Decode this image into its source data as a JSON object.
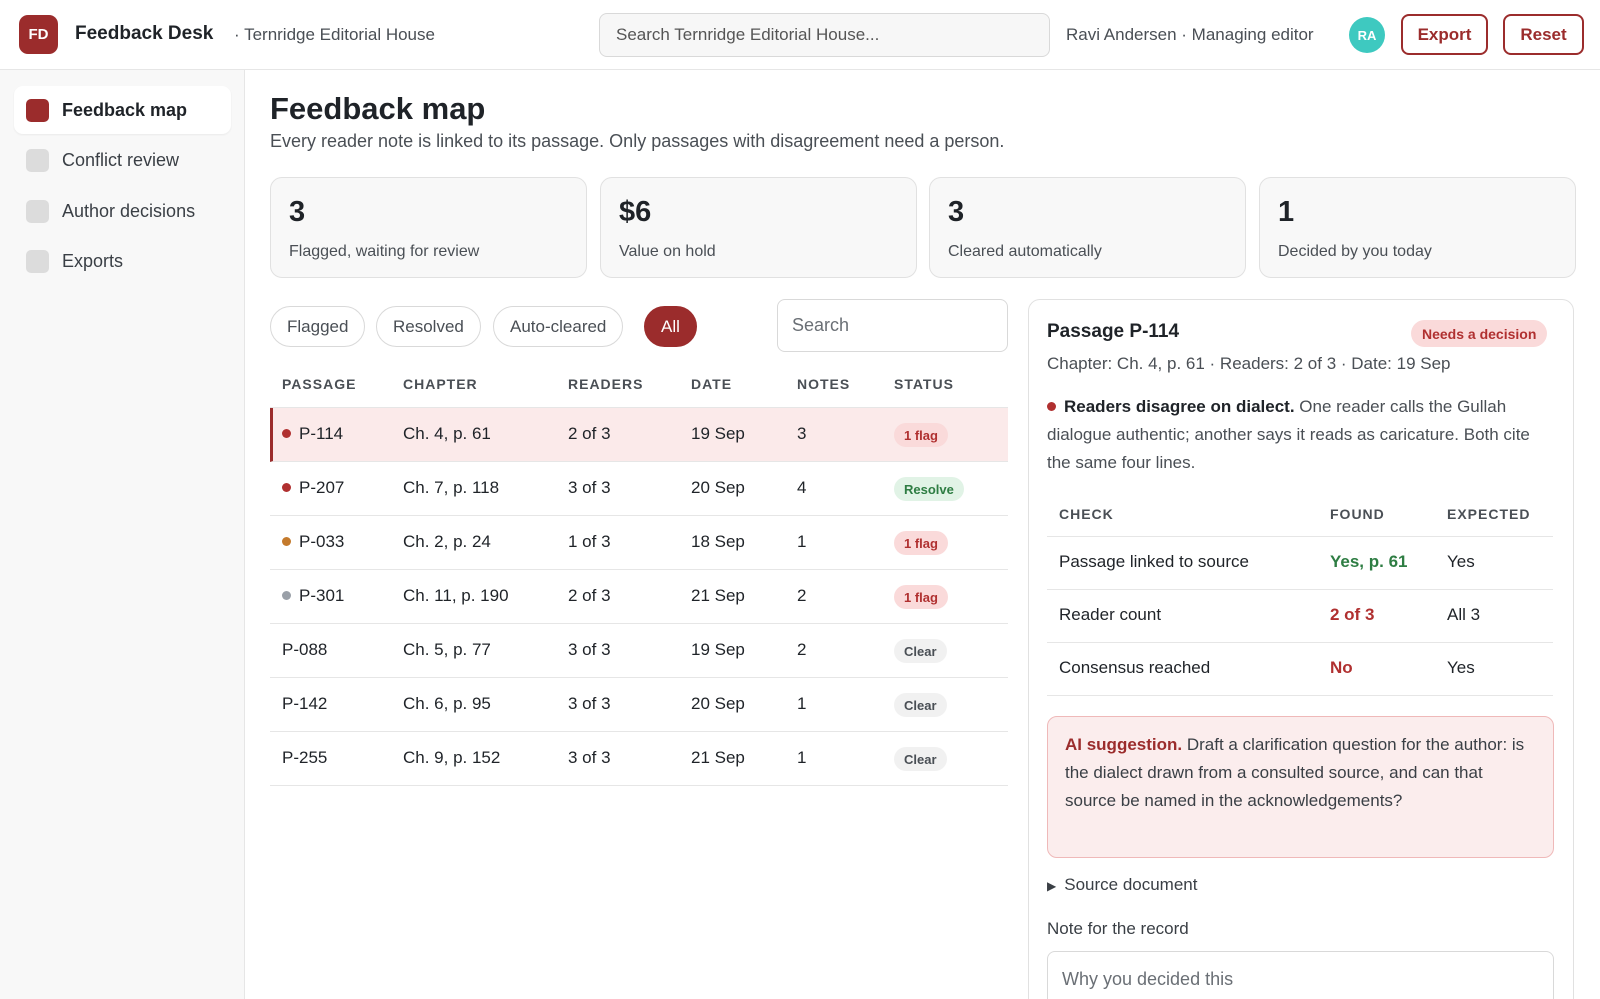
{
  "header": {
    "logo_text": "FD",
    "app_name": "Feedback Desk",
    "org_name": "· Ternridge Editorial House",
    "search_placeholder": "Search Ternridge Editorial House...",
    "user_label": "Ravi Andersen · Managing editor",
    "avatar_initials": "RA",
    "export_label": "Export",
    "reset_label": "Reset"
  },
  "sidebar": {
    "items": [
      {
        "label": "Feedback map",
        "active": true
      },
      {
        "label": "Conflict review",
        "active": false
      },
      {
        "label": "Author decisions",
        "active": false
      },
      {
        "label": "Exports",
        "active": false
      }
    ]
  },
  "main": {
    "title": "Feedback map",
    "subtitle": "Every reader note is linked to its passage. Only passages with disagreement need a person."
  },
  "stats": [
    {
      "value": "3",
      "label": "Flagged, waiting for review"
    },
    {
      "value": "$6",
      "label": "Value on hold"
    },
    {
      "value": "3",
      "label": "Cleared automatically"
    },
    {
      "value": "1",
      "label": "Decided by you today"
    }
  ],
  "filters": {
    "chips": [
      "Flagged",
      "Resolved",
      "Auto-cleared",
      "All"
    ],
    "active": "All",
    "search_placeholder": "Search"
  },
  "table": {
    "columns": [
      "PASSAGE",
      "CHAPTER",
      "READERS",
      "DATE",
      "NOTES",
      "STATUS"
    ],
    "rows": [
      {
        "passage": "P-114",
        "chapter": "Ch. 4, p. 61",
        "readers": "2 of 3",
        "date": "19 Sep",
        "notes": "3",
        "status": "1 flag",
        "status_type": "flag",
        "dot": "#b03030",
        "selected": true
      },
      {
        "passage": "P-207",
        "chapter": "Ch. 7, p. 118",
        "readers": "3 of 3",
        "date": "20 Sep",
        "notes": "4",
        "status": "Resolve",
        "status_type": "resolve",
        "dot": "#b03030",
        "selected": false
      },
      {
        "passage": "P-033",
        "chapter": "Ch. 2, p. 24",
        "readers": "1 of 3",
        "date": "18 Sep",
        "notes": "1",
        "status": "1 flag",
        "status_type": "flag",
        "dot": "#c47a2c",
        "selected": false
      },
      {
        "passage": "P-301",
        "chapter": "Ch. 11, p. 190",
        "readers": "2 of 3",
        "date": "21 Sep",
        "notes": "2",
        "status": "1 flag",
        "status_type": "flag",
        "dot": "#9aa0a8",
        "selected": false
      },
      {
        "passage": "P-088",
        "chapter": "Ch. 5, p. 77",
        "readers": "3 of 3",
        "date": "19 Sep",
        "notes": "2",
        "status": "Clear",
        "status_type": "clear",
        "dot": "",
        "selected": false
      },
      {
        "passage": "P-142",
        "chapter": "Ch. 6, p. 95",
        "readers": "3 of 3",
        "date": "20 Sep",
        "notes": "1",
        "status": "Clear",
        "status_type": "clear",
        "dot": "",
        "selected": false
      },
      {
        "passage": "P-255",
        "chapter": "Ch. 9, p. 152",
        "readers": "3 of 3",
        "date": "21 Sep",
        "notes": "1",
        "status": "Clear",
        "status_type": "clear",
        "dot": "",
        "selected": false
      }
    ]
  },
  "detail": {
    "title": "Passage P-114",
    "badge": "Needs a decision",
    "meta": "Chapter: Ch. 4, p. 61 · Readers: 2 of 3 · Date: 19 Sep",
    "desc_strong": "Readers disagree on dialect.",
    "desc_text": " One reader calls the Gullah dialogue authentic; another says it reads as caricature. Both cite the same four lines.",
    "check_columns": [
      "CHECK",
      "FOUND",
      "EXPECTED"
    ],
    "checks": [
      {
        "check": "Passage linked to source",
        "found": "Yes, p. 61",
        "found_ok": true,
        "expected": "Yes"
      },
      {
        "check": "Reader count",
        "found": "2 of 3",
        "found_ok": false,
        "expected": "All 3"
      },
      {
        "check": "Consensus reached",
        "found": "No",
        "found_ok": false,
        "expected": "Yes"
      }
    ],
    "ai_strong": "AI suggestion.",
    "ai_text": " Draft a clarification question for the author: is the dialect drawn from a consulted source, and can that source be named in the acknowledgements?",
    "source_toggle": "Source document",
    "note_label": "Note for the record",
    "note_placeholder": "Why you decided this"
  },
  "colors": {
    "accent": "#9b2c2c",
    "flag": "#b03030",
    "ok": "#2e7d43",
    "avatar": "#3ec9c0"
  }
}
